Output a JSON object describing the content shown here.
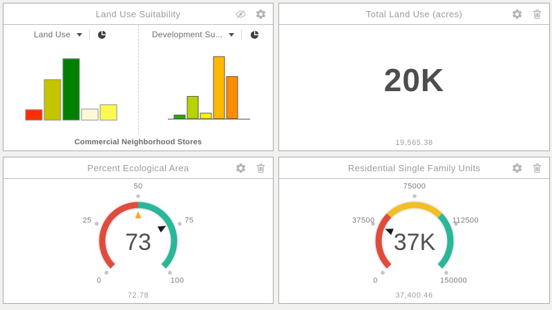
{
  "panels": {
    "land_use_suitability": {
      "title": "Land Use Suitability",
      "header_icons": [
        "visibility-off",
        "gear"
      ],
      "selectors": [
        {
          "label": "Land Use",
          "icon": "pie-chart"
        },
        {
          "label": "Development Su...",
          "icon": "pie-chart"
        }
      ],
      "category_label": "Commercial Neighborhood Stores"
    },
    "total_land_use": {
      "title": "Total Land Use (acres)",
      "header_icons": [
        "gear",
        "trash"
      ],
      "value_display": "20K",
      "value_exact": "19,565.38"
    },
    "percent_ecological_area": {
      "title": "Percent Ecological Area",
      "header_icons": [
        "gear",
        "trash"
      ],
      "value_display": "73",
      "value_exact": "72.78"
    },
    "residential_single_family_units": {
      "title": "Residential Single Family Units",
      "header_icons": [
        "gear",
        "trash"
      ],
      "value_display": "37K",
      "value_exact": "37,400.46"
    }
  },
  "chart_data": [
    {
      "type": "bar",
      "title": "Land Use",
      "values": [
        17,
        66,
        100,
        18,
        25
      ],
      "colors": [
        "#ff2e00",
        "#c4c400",
        "#008000",
        "#fff8d9",
        "#fbfb4f"
      ]
    },
    {
      "type": "bar",
      "title": "Development Su...",
      "values": [
        6,
        36,
        9,
        100,
        68
      ],
      "colors": [
        "#21ad01",
        "#b5d401",
        "#fff201",
        "#ffb901",
        "#ff8c01"
      ]
    },
    {
      "type": "gauge",
      "title": "Percent Ecological Area",
      "min": 0,
      "max": 100,
      "value": 72.78,
      "display": "73",
      "ticks": [
        "0",
        "25",
        "50",
        "75",
        "100"
      ],
      "segments": [
        {
          "from": 0,
          "to": 50,
          "color": "#e14b3b"
        },
        {
          "from": 50,
          "to": 100,
          "color": "#2ab699"
        }
      ],
      "threshold": {
        "value": 50,
        "color": "#f5a623"
      }
    },
    {
      "type": "gauge",
      "title": "Residential Single Family Units",
      "min": 0,
      "max": 150000,
      "value": 37400.46,
      "display": "37K",
      "ticks": [
        "0",
        "37500",
        "75000",
        "112500",
        "150000"
      ],
      "segments": [
        {
          "from": 0,
          "to": 50000,
          "color": "#e14b3b"
        },
        {
          "from": 50000,
          "to": 100000,
          "color": "#f2bf24"
        },
        {
          "from": 100000,
          "to": 150000,
          "color": "#2ab699"
        }
      ]
    }
  ]
}
